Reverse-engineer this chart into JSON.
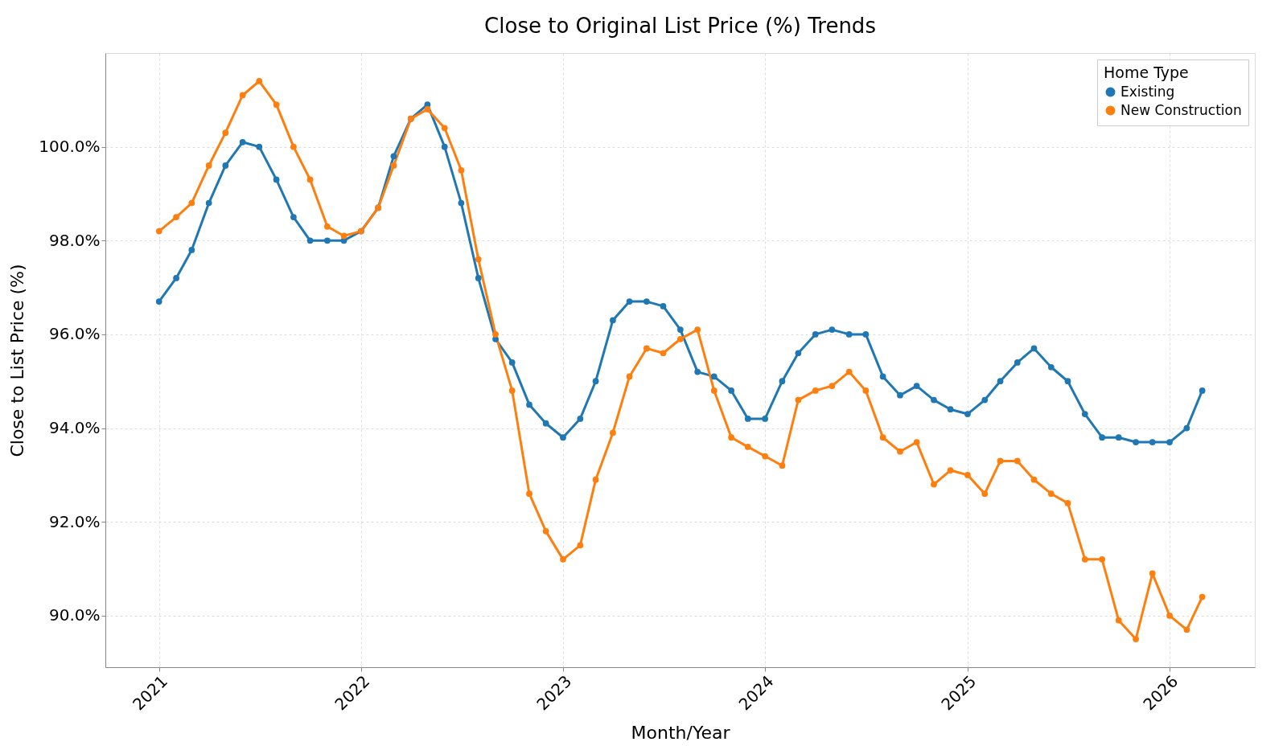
{
  "chart_data": {
    "type": "line",
    "title": "Close to Original List Price (%) Trends",
    "xlabel": "Month/Year",
    "ylabel": "Close to List Price (%)",
    "legend_title": "Home Type",
    "x": [
      "2021-01",
      "2021-02",
      "2021-03",
      "2021-04",
      "2021-05",
      "2021-06",
      "2021-07",
      "2021-08",
      "2021-09",
      "2021-10",
      "2021-11",
      "2021-12",
      "2022-01",
      "2022-02",
      "2022-03",
      "2022-04",
      "2022-05",
      "2022-06",
      "2022-07",
      "2022-08",
      "2022-09",
      "2022-10",
      "2022-11",
      "2022-12",
      "2023-01",
      "2023-02",
      "2023-03",
      "2023-04",
      "2023-05",
      "2023-06",
      "2023-07",
      "2023-08",
      "2023-09",
      "2023-10",
      "2023-11",
      "2023-12",
      "2024-01",
      "2024-02",
      "2024-03",
      "2024-04",
      "2024-05",
      "2024-06",
      "2024-07",
      "2024-08",
      "2024-09",
      "2024-10",
      "2024-11",
      "2024-12",
      "2025-01",
      "2025-02",
      "2025-03",
      "2025-04",
      "2025-05",
      "2025-06",
      "2025-07",
      "2025-08",
      "2025-09",
      "2025-10",
      "2025-11",
      "2025-12",
      "2026-01",
      "2026-02",
      "2026-03"
    ],
    "series": [
      {
        "name": "Existing",
        "color": "#1f77b4",
        "values": [
          96.7,
          97.2,
          97.8,
          98.8,
          99.6,
          100.1,
          100.0,
          99.3,
          98.5,
          98.0,
          98.0,
          98.0,
          98.2,
          98.7,
          99.8,
          100.6,
          100.9,
          100.0,
          98.8,
          97.2,
          95.9,
          95.4,
          94.5,
          94.1,
          93.8,
          94.2,
          95.0,
          96.3,
          96.7,
          96.7,
          96.6,
          96.1,
          95.2,
          95.1,
          94.8,
          94.2,
          94.2,
          95.0,
          95.6,
          96.0,
          96.1,
          96.0,
          96.0,
          95.1,
          94.7,
          94.9,
          94.6,
          94.4,
          94.3,
          94.6,
          95.0,
          95.4,
          95.7,
          95.3,
          95.0,
          94.3,
          93.8,
          93.8,
          93.7,
          93.7,
          93.7,
          94.0,
          94.8
        ]
      },
      {
        "name": "New Construction",
        "color": "#ff7f0e",
        "values": [
          98.2,
          98.5,
          98.8,
          99.6,
          100.3,
          101.1,
          101.4,
          100.9,
          100.0,
          99.3,
          98.3,
          98.1,
          98.2,
          98.7,
          99.6,
          100.6,
          100.8,
          100.4,
          99.5,
          97.6,
          96.0,
          94.8,
          92.6,
          91.8,
          91.2,
          91.5,
          92.9,
          93.9,
          95.1,
          95.7,
          95.6,
          95.9,
          96.1,
          94.8,
          93.8,
          93.6,
          93.4,
          93.2,
          94.6,
          94.8,
          94.9,
          95.2,
          94.8,
          93.8,
          93.5,
          93.7,
          92.8,
          93.1,
          93.0,
          92.6,
          93.3,
          93.3,
          92.9,
          92.6,
          92.4,
          91.2,
          91.2,
          89.9,
          89.5,
          90.9,
          90.0,
          89.7,
          90.4
        ]
      }
    ],
    "xlim": [
      "2020-09-26",
      "2026-06-04"
    ],
    "xticks": [
      "2021",
      "2022",
      "2023",
      "2024",
      "2025",
      "2026"
    ],
    "ylim": [
      88.9,
      102.0
    ],
    "yticks": [
      {
        "value": 90,
        "label": "90.0%"
      },
      {
        "value": 92,
        "label": "92.0%"
      },
      {
        "value": 94,
        "label": "94.0%"
      },
      {
        "value": 96,
        "label": "96.0%"
      },
      {
        "value": 98,
        "label": "98.0%"
      },
      {
        "value": 100,
        "label": "100.0%"
      }
    ],
    "grid": true,
    "legend": "top right",
    "marker": "circle",
    "line_style": "solid"
  }
}
